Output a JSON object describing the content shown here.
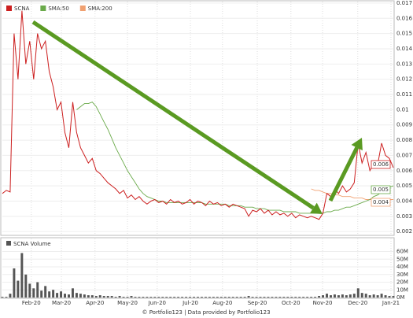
{
  "chart_data": {
    "type": "line",
    "legend": [
      "SCNA",
      "SMA:50",
      "SMA:200"
    ],
    "legend_position": "top-left",
    "grid": true,
    "xlim": [
      0,
      100
    ],
    "xticks": [
      {
        "value": 7.4,
        "label": "Feb-20"
      },
      {
        "value": 15.1,
        "label": "Mar-20"
      },
      {
        "value": 23.7,
        "label": "Apr-20"
      },
      {
        "value": 32,
        "label": "May-20"
      },
      {
        "value": 39.6,
        "label": "Jun-20"
      },
      {
        "value": 48.1,
        "label": "Jul-20"
      },
      {
        "value": 56.3,
        "label": "Aug-20"
      },
      {
        "value": 65.2,
        "label": "Sep-20"
      },
      {
        "value": 73.8,
        "label": "Oct-20"
      },
      {
        "value": 81.9,
        "label": "Nov-20"
      },
      {
        "value": 90.9,
        "label": "Dec-20"
      },
      {
        "value": 99.4,
        "label": "Jan-21"
      }
    ],
    "ylim": [
      0.00175,
      0.0171
    ],
    "yticks": [
      0.002,
      0.003,
      0.004,
      0.005,
      0.006,
      0.007,
      0.008,
      0.009,
      0.01,
      0.011,
      0.012,
      0.013,
      0.014,
      0.015,
      0.016,
      0.017
    ],
    "series": [
      {
        "name": "SCNA",
        "color": "#cc1f1f",
        "last_label": "0.006",
        "values": [
          0.0045,
          0.0047,
          0.0046,
          0.015,
          0.012,
          0.0165,
          0.013,
          0.0145,
          0.012,
          0.015,
          0.014,
          0.0145,
          0.0125,
          0.0115,
          0.01,
          0.0105,
          0.0085,
          0.0075,
          0.0105,
          0.0085,
          0.0075,
          0.007,
          0.0065,
          0.0068,
          0.006,
          0.0058,
          0.0055,
          0.0052,
          0.005,
          0.0048,
          0.0045,
          0.0047,
          0.0042,
          0.0044,
          0.0041,
          0.0043,
          0.004,
          0.0038,
          0.004,
          0.0041,
          0.0039,
          0.004,
          0.0038,
          0.0041,
          0.0039,
          0.004,
          0.0038,
          0.0039,
          0.0041,
          0.0038,
          0.004,
          0.0039,
          0.0037,
          0.004,
          0.0038,
          0.0039,
          0.0037,
          0.0038,
          0.0036,
          0.0038,
          0.0037,
          0.0036,
          0.0035,
          0.003,
          0.0034,
          0.0033,
          0.0035,
          0.0032,
          0.0034,
          0.0031,
          0.0033,
          0.0031,
          0.0032,
          0.003,
          0.0032,
          0.0029,
          0.0031,
          0.003,
          0.0029,
          0.003,
          0.0029,
          0.0028,
          0.0032,
          0.0045,
          0.0043,
          0.0048,
          0.0045,
          0.005,
          0.0046,
          0.0048,
          0.0052,
          0.0078,
          0.0065,
          0.0072,
          0.006,
          0.0065,
          0.0064,
          0.0078,
          0.007,
          0.0068,
          0.0062
        ]
      },
      {
        "name": "SMA:50",
        "color": "#6aaa4a",
        "last_label": "0.005",
        "values": [
          null,
          null,
          null,
          null,
          null,
          null,
          null,
          null,
          null,
          null,
          null,
          null,
          null,
          null,
          null,
          null,
          null,
          null,
          null,
          0.01,
          0.0102,
          0.0104,
          0.0104,
          0.0105,
          0.0102,
          0.0097,
          0.0092,
          0.0087,
          0.0081,
          0.0075,
          0.007,
          0.0065,
          0.006,
          0.0056,
          0.0052,
          0.0048,
          0.0045,
          0.0043,
          0.0042,
          0.0041,
          0.004,
          0.004,
          0.0039,
          0.0039,
          0.0039,
          0.0039,
          0.0039,
          0.0039,
          0.0039,
          0.0039,
          0.0039,
          0.0039,
          0.0038,
          0.0038,
          0.0038,
          0.0038,
          0.0038,
          0.0038,
          0.0037,
          0.0037,
          0.0037,
          0.0037,
          0.0036,
          0.0036,
          0.0036,
          0.0035,
          0.0035,
          0.0035,
          0.0034,
          0.0034,
          0.0034,
          0.0034,
          0.0033,
          0.0033,
          0.0033,
          0.0033,
          0.0032,
          0.0032,
          0.0032,
          0.0032,
          0.0032,
          0.0032,
          0.0032,
          0.0033,
          0.0033,
          0.0034,
          0.0034,
          0.0035,
          0.0036,
          0.0036,
          0.0037,
          0.0038,
          0.0039,
          0.004,
          0.0041,
          0.0043,
          0.0044,
          0.0046,
          0.0047,
          0.0049,
          0.005
        ]
      },
      {
        "name": "SMA:200",
        "color": "#f0a070",
        "last_label": "0.004",
        "values": [
          null,
          null,
          null,
          null,
          null,
          null,
          null,
          null,
          null,
          null,
          null,
          null,
          null,
          null,
          null,
          null,
          null,
          null,
          null,
          null,
          null,
          null,
          null,
          null,
          null,
          null,
          null,
          null,
          null,
          null,
          null,
          null,
          null,
          null,
          null,
          null,
          null,
          null,
          null,
          null,
          null,
          null,
          null,
          null,
          null,
          null,
          null,
          null,
          null,
          null,
          null,
          null,
          null,
          null,
          null,
          null,
          null,
          null,
          null,
          null,
          null,
          null,
          null,
          null,
          null,
          null,
          null,
          null,
          null,
          null,
          null,
          null,
          null,
          null,
          null,
          null,
          null,
          null,
          null,
          0.0048,
          0.0047,
          0.0047,
          0.0046,
          0.0045,
          0.0045,
          0.0044,
          0.0044,
          0.0043,
          0.0043,
          0.0043,
          0.0042,
          0.0042,
          0.0042,
          0.0041,
          0.0041,
          0.0041,
          0.0041,
          0.0041,
          0.0041,
          0.0041,
          0.0041
        ]
      }
    ],
    "volume": {
      "name": "SCNA Volume",
      "color": "#555555",
      "ylim": [
        0,
        77000000
      ],
      "yticks": [
        {
          "value": 0,
          "label": "0M"
        },
        {
          "value": 10000000,
          "label": "10M"
        },
        {
          "value": 20000000,
          "label": "20M"
        },
        {
          "value": 30000000,
          "label": "30M"
        },
        {
          "value": 40000000,
          "label": "40M"
        },
        {
          "value": 50000000,
          "label": "50M"
        },
        {
          "value": 60000000,
          "label": "60M"
        }
      ],
      "values": [
        1000000.0,
        1000000.0,
        5000000.0,
        38000000.0,
        22000000.0,
        58000000.0,
        30000000.0,
        18000000.0,
        12000000.0,
        20000000.0,
        9000000.0,
        15000000.0,
        8000000.0,
        10000000.0,
        6000000.0,
        8000000.0,
        5000000.0,
        4000000.0,
        12000000.0,
        6000000.0,
        5000000.0,
        4000000.0,
        3000000.0,
        3000000.0,
        2000000.0,
        3000000.0,
        2000000.0,
        2000000.0,
        2000000.0,
        1000000.0,
        2000000.0,
        1000000.0,
        1000000.0,
        2000000.0,
        1000000.0,
        1000000.0,
        1000000.0,
        1000000.0,
        1000000.0,
        1000000.0,
        1000000.0,
        1000000.0,
        1000000.0,
        1000000.0,
        1000000.0,
        1000000.0,
        1000000.0,
        1000000.0,
        1000000.0,
        1000000.0,
        1000000.0,
        1000000.0,
        1000000.0,
        1000000.0,
        1000000.0,
        1000000.0,
        1000000.0,
        1000000.0,
        1000000.0,
        1000000.0,
        1000000.0,
        1000000.0,
        1000000.0,
        2000000.0,
        1000000.0,
        1000000.0,
        1000000.0,
        1000000.0,
        1000000.0,
        1000000.0,
        1000000.0,
        1000000.0,
        1000000.0,
        1000000.0,
        1000000.0,
        1000000.0,
        1000000.0,
        1000000.0,
        1000000.0,
        1000000.0,
        1000000.0,
        2000000.0,
        3000000.0,
        5000000.0,
        3000000.0,
        4000000.0,
        3000000.0,
        4000000.0,
        3000000.0,
        4000000.0,
        5000000.0,
        12000000.0,
        6000000.0,
        5000000.0,
        3000000.0,
        4000000.0,
        3000000.0,
        5000000.0,
        3000000.0,
        2000000.0,
        2000000.0
      ]
    },
    "footer": "© Portfolio123 | Data provided by Portfolio123"
  }
}
